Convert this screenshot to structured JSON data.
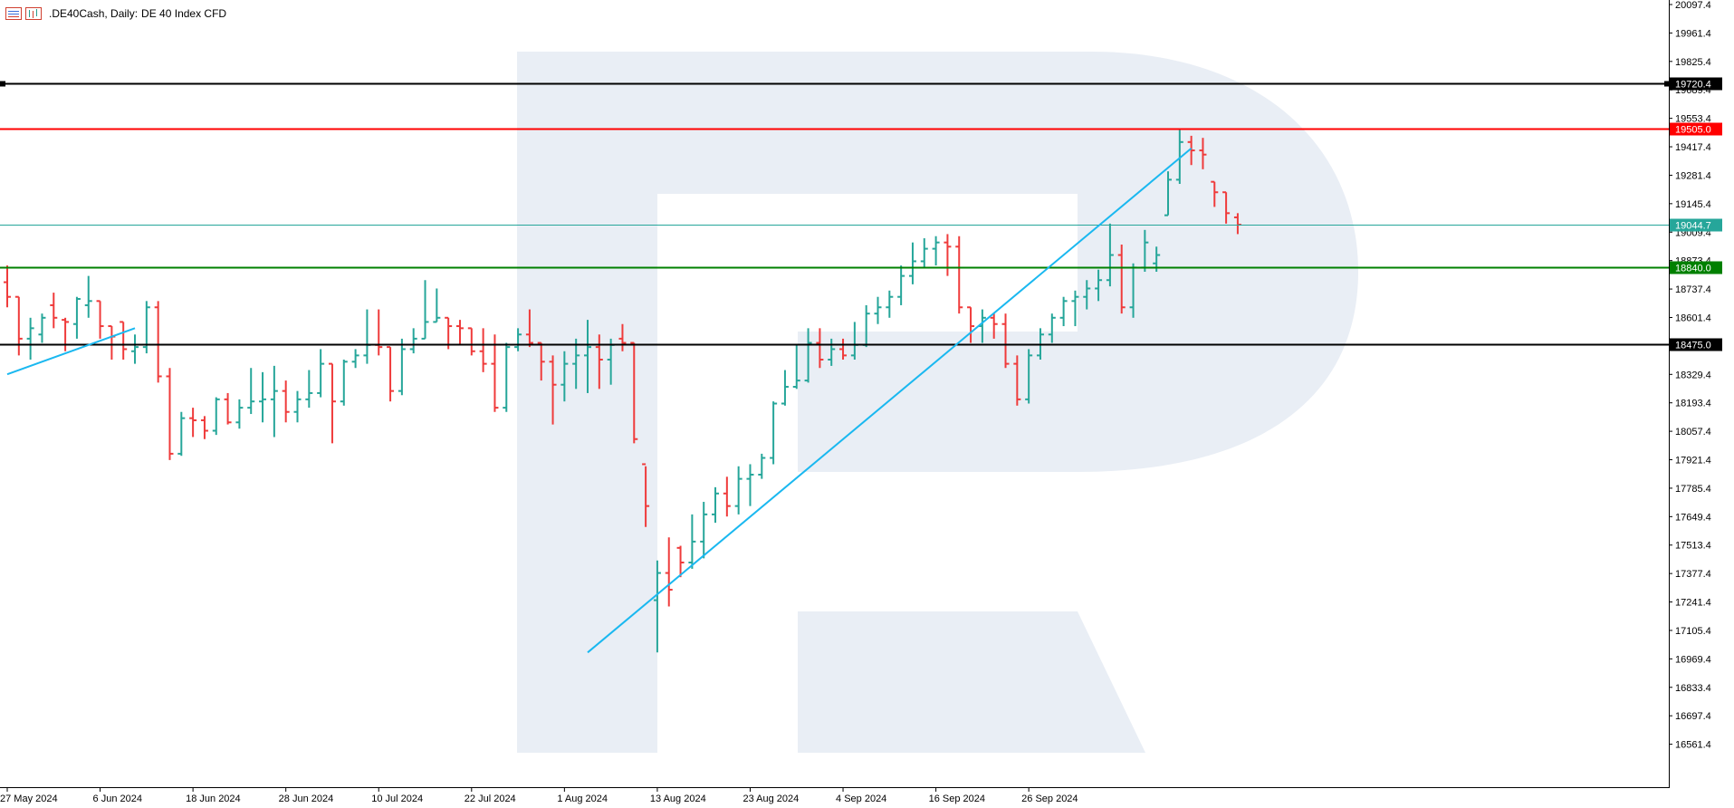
{
  "header": {
    "symbol": ".DE40Cash, Daily:",
    "description": "DE 40 Index CFD",
    "icons": [
      "bar-list-icon",
      "chart-type-icon"
    ]
  },
  "colors": {
    "bull": "#26a69a",
    "bear": "#ef3b3b",
    "trendline": "#1ab8f0",
    "resistance": "#ff0000",
    "support": "#008000",
    "level": "#000000",
    "current": "#26a69a",
    "watermark": "#e9eef5"
  },
  "chart_data": {
    "type": "ohlc",
    "ylim": [
      16425.4,
      20097.4
    ],
    "y_ticks": [
      "20097.4",
      "19961.4",
      "19825.4",
      "19689.4",
      "19553.4",
      "19417.4",
      "19281.4",
      "19145.4",
      "19009.4",
      "18873.4",
      "18737.4",
      "18601.4",
      "18465.4",
      "18329.4",
      "18193.4",
      "18057.4",
      "17921.4",
      "17785.4",
      "17649.4",
      "17513.4",
      "17377.4",
      "17241.4",
      "17105.4",
      "16969.4",
      "16833.4",
      "16697.4",
      "16561.4"
    ],
    "x_labels": [
      "27 May 2024",
      "6 Jun 2024",
      "18 Jun 2024",
      "28 Jun 2024",
      "10 Jul 2024",
      "22 Jul 2024",
      "1 Aug 2024",
      "13 Aug 2024",
      "23 Aug 2024",
      "4 Sep 2024",
      "16 Sep 2024",
      "26 Sep 2024"
    ],
    "x_label_bar_index": [
      0,
      8,
      16,
      24,
      32,
      40,
      48,
      56,
      64,
      72,
      80,
      88
    ],
    "horizontal_levels": [
      {
        "label": "19720.4",
        "value": 19720.4,
        "role": "level"
      },
      {
        "label": "19505.0",
        "value": 19505.0,
        "role": "resistance"
      },
      {
        "label": "19044.7",
        "value": 19044.7,
        "role": "current"
      },
      {
        "label": "18840.0",
        "value": 18840.0,
        "role": "support"
      },
      {
        "label": "18475.0",
        "value": 18475.0,
        "role": "level"
      }
    ],
    "trendlines": [
      {
        "from": {
          "bar": 0,
          "value": 18330
        },
        "to": {
          "bar": 11,
          "value": 18550
        }
      },
      {
        "from": {
          "bar": 50,
          "value": 17000
        },
        "to": {
          "bar": 102,
          "value": 19410
        }
      }
    ],
    "bars": [
      {
        "o": 18770,
        "h": 18850,
        "l": 18650,
        "c": 18700
      },
      {
        "o": 18700,
        "h": 18700,
        "l": 18420,
        "c": 18500
      },
      {
        "o": 18500,
        "h": 18600,
        "l": 18400,
        "c": 18550
      },
      {
        "o": 18520,
        "h": 18620,
        "l": 18480,
        "c": 18600
      },
      {
        "o": 18660,
        "h": 18720,
        "l": 18550,
        "c": 18600
      },
      {
        "o": 18590,
        "h": 18600,
        "l": 18440,
        "c": 18580
      },
      {
        "o": 18570,
        "h": 18700,
        "l": 18500,
        "c": 18690
      },
      {
        "o": 18660,
        "h": 18800,
        "l": 18600,
        "c": 18680
      },
      {
        "o": 18680,
        "h": 18680,
        "l": 18500,
        "c": 18560
      },
      {
        "o": 18560,
        "h": 18560,
        "l": 18400,
        "c": 18510
      },
      {
        "o": 18580,
        "h": 18580,
        "l": 18400,
        "c": 18450
      },
      {
        "o": 18440,
        "h": 18520,
        "l": 18380,
        "c": 18460
      },
      {
        "o": 18460,
        "h": 18680,
        "l": 18430,
        "c": 18650
      },
      {
        "o": 18650,
        "h": 18680,
        "l": 18290,
        "c": 18320
      },
      {
        "o": 18320,
        "h": 18360,
        "l": 17920,
        "c": 17950
      },
      {
        "o": 17950,
        "h": 18150,
        "l": 17940,
        "c": 18120
      },
      {
        "o": 18120,
        "h": 18170,
        "l": 18030,
        "c": 18110
      },
      {
        "o": 18110,
        "h": 18130,
        "l": 18020,
        "c": 18060
      },
      {
        "o": 18060,
        "h": 18220,
        "l": 18040,
        "c": 18210
      },
      {
        "o": 18210,
        "h": 18240,
        "l": 18090,
        "c": 18100
      },
      {
        "o": 18100,
        "h": 18210,
        "l": 18070,
        "c": 18170
      },
      {
        "o": 18170,
        "h": 18360,
        "l": 18140,
        "c": 18200
      },
      {
        "o": 18200,
        "h": 18340,
        "l": 18100,
        "c": 18210
      },
      {
        "o": 18210,
        "h": 18370,
        "l": 18030,
        "c": 18250
      },
      {
        "o": 18250,
        "h": 18300,
        "l": 18100,
        "c": 18150
      },
      {
        "o": 18150,
        "h": 18250,
        "l": 18100,
        "c": 18210
      },
      {
        "o": 18210,
        "h": 18350,
        "l": 18170,
        "c": 18240
      },
      {
        "o": 18240,
        "h": 18450,
        "l": 18220,
        "c": 18380
      },
      {
        "o": 18380,
        "h": 18380,
        "l": 18000,
        "c": 18200
      },
      {
        "o": 18200,
        "h": 18400,
        "l": 18180,
        "c": 18390
      },
      {
        "o": 18390,
        "h": 18450,
        "l": 18360,
        "c": 18420
      },
      {
        "o": 18420,
        "h": 18640,
        "l": 18380,
        "c": 18470
      },
      {
        "o": 18470,
        "h": 18640,
        "l": 18420,
        "c": 18460
      },
      {
        "o": 18460,
        "h": 18460,
        "l": 18200,
        "c": 18250
      },
      {
        "o": 18250,
        "h": 18500,
        "l": 18230,
        "c": 18450
      },
      {
        "o": 18450,
        "h": 18550,
        "l": 18430,
        "c": 18500
      },
      {
        "o": 18500,
        "h": 18780,
        "l": 18500,
        "c": 18580
      },
      {
        "o": 18580,
        "h": 18740,
        "l": 18580,
        "c": 18600
      },
      {
        "o": 18600,
        "h": 18600,
        "l": 18450,
        "c": 18560
      },
      {
        "o": 18560,
        "h": 18590,
        "l": 18470,
        "c": 18550
      },
      {
        "o": 18550,
        "h": 18550,
        "l": 18420,
        "c": 18440
      },
      {
        "o": 18440,
        "h": 18550,
        "l": 18340,
        "c": 18380
      },
      {
        "o": 18380,
        "h": 18520,
        "l": 18150,
        "c": 18170
      },
      {
        "o": 18170,
        "h": 18480,
        "l": 18150,
        "c": 18460
      },
      {
        "o": 18460,
        "h": 18550,
        "l": 18440,
        "c": 18520
      },
      {
        "o": 18520,
        "h": 18640,
        "l": 18460,
        "c": 18480
      },
      {
        "o": 18480,
        "h": 18480,
        "l": 18300,
        "c": 18390
      },
      {
        "o": 18390,
        "h": 18420,
        "l": 18090,
        "c": 18280
      },
      {
        "o": 18280,
        "h": 18440,
        "l": 18200,
        "c": 18380
      },
      {
        "o": 18380,
        "h": 18500,
        "l": 18260,
        "c": 18420
      },
      {
        "o": 18420,
        "h": 18590,
        "l": 18240,
        "c": 18460
      },
      {
        "o": 18460,
        "h": 18520,
        "l": 18260,
        "c": 18400
      },
      {
        "o": 18400,
        "h": 18500,
        "l": 18280,
        "c": 18470
      },
      {
        "o": 18500,
        "h": 18570,
        "l": 18440,
        "c": 18480
      },
      {
        "o": 18480,
        "h": 18480,
        "l": 18000,
        "c": 18020
      },
      {
        "o": 17900,
        "h": 17890,
        "l": 17600,
        "c": 17700
      },
      {
        "o": 17250,
        "h": 17440,
        "l": 17000,
        "c": 17380
      },
      {
        "o": 17380,
        "h": 17550,
        "l": 17220,
        "c": 17300
      },
      {
        "o": 17500,
        "h": 17510,
        "l": 17360,
        "c": 17430
      },
      {
        "o": 17430,
        "h": 17660,
        "l": 17400,
        "c": 17530
      },
      {
        "o": 17530,
        "h": 17720,
        "l": 17450,
        "c": 17660
      },
      {
        "o": 17660,
        "h": 17790,
        "l": 17620,
        "c": 17760
      },
      {
        "o": 17760,
        "h": 17840,
        "l": 17650,
        "c": 17700
      },
      {
        "o": 17700,
        "h": 17890,
        "l": 17660,
        "c": 17830
      },
      {
        "o": 17830,
        "h": 17900,
        "l": 17700,
        "c": 17850
      },
      {
        "o": 17850,
        "h": 17950,
        "l": 17830,
        "c": 17930
      },
      {
        "o": 17930,
        "h": 18200,
        "l": 17900,
        "c": 18190
      },
      {
        "o": 18190,
        "h": 18350,
        "l": 18180,
        "c": 18270
      },
      {
        "o": 18270,
        "h": 18470,
        "l": 18260,
        "c": 18300
      },
      {
        "o": 18300,
        "h": 18550,
        "l": 18290,
        "c": 18480
      },
      {
        "o": 18480,
        "h": 18550,
        "l": 18360,
        "c": 18400
      },
      {
        "o": 18400,
        "h": 18500,
        "l": 18370,
        "c": 18450
      },
      {
        "o": 18450,
        "h": 18500,
        "l": 18400,
        "c": 18420
      },
      {
        "o": 18420,
        "h": 18580,
        "l": 18400,
        "c": 18470
      },
      {
        "o": 18470,
        "h": 18660,
        "l": 18460,
        "c": 18620
      },
      {
        "o": 18620,
        "h": 18700,
        "l": 18570,
        "c": 18650
      },
      {
        "o": 18650,
        "h": 18730,
        "l": 18600,
        "c": 18700
      },
      {
        "o": 18700,
        "h": 18850,
        "l": 18660,
        "c": 18800
      },
      {
        "o": 18800,
        "h": 18960,
        "l": 18760,
        "c": 18870
      },
      {
        "o": 18870,
        "h": 18980,
        "l": 18840,
        "c": 18930
      },
      {
        "o": 18930,
        "h": 18990,
        "l": 18850,
        "c": 18960
      },
      {
        "o": 18960,
        "h": 19000,
        "l": 18800,
        "c": 18940
      },
      {
        "o": 18940,
        "h": 18990,
        "l": 18620,
        "c": 18650
      },
      {
        "o": 18650,
        "h": 18650,
        "l": 18480,
        "c": 18560
      },
      {
        "o": 18560,
        "h": 18640,
        "l": 18480,
        "c": 18600
      },
      {
        "o": 18600,
        "h": 18620,
        "l": 18500,
        "c": 18570
      },
      {
        "o": 18570,
        "h": 18620,
        "l": 18360,
        "c": 18380
      },
      {
        "o": 18380,
        "h": 18420,
        "l": 18180,
        "c": 18210
      },
      {
        "o": 18210,
        "h": 18450,
        "l": 18190,
        "c": 18420
      },
      {
        "o": 18420,
        "h": 18550,
        "l": 18400,
        "c": 18520
      },
      {
        "o": 18520,
        "h": 18620,
        "l": 18480,
        "c": 18600
      },
      {
        "o": 18600,
        "h": 18700,
        "l": 18560,
        "c": 18680
      },
      {
        "o": 18680,
        "h": 18730,
        "l": 18560,
        "c": 18700
      },
      {
        "o": 18700,
        "h": 18780,
        "l": 18640,
        "c": 18740
      },
      {
        "o": 18740,
        "h": 18830,
        "l": 18680,
        "c": 18780
      },
      {
        "o": 18780,
        "h": 19050,
        "l": 18750,
        "c": 18900
      },
      {
        "o": 18900,
        "h": 18950,
        "l": 18620,
        "c": 18650
      },
      {
        "o": 18650,
        "h": 18860,
        "l": 18600,
        "c": 18840
      },
      {
        "o": 18840,
        "h": 19020,
        "l": 18820,
        "c": 18960
      },
      {
        "o": 18860,
        "h": 18940,
        "l": 18820,
        "c": 18900
      },
      {
        "o": 19090,
        "h": 19300,
        "l": 19090,
        "c": 19260
      },
      {
        "o": 19260,
        "h": 19500,
        "l": 19240,
        "c": 19440
      },
      {
        "o": 19440,
        "h": 19470,
        "l": 19330,
        "c": 19400
      },
      {
        "o": 19400,
        "h": 19460,
        "l": 19310,
        "c": 19380
      },
      {
        "o": 19250,
        "h": 19250,
        "l": 19130,
        "c": 19200
      },
      {
        "o": 19200,
        "h": 19200,
        "l": 19050,
        "c": 19100
      },
      {
        "o": 19080,
        "h": 19100,
        "l": 19000,
        "c": 19045
      }
    ]
  }
}
